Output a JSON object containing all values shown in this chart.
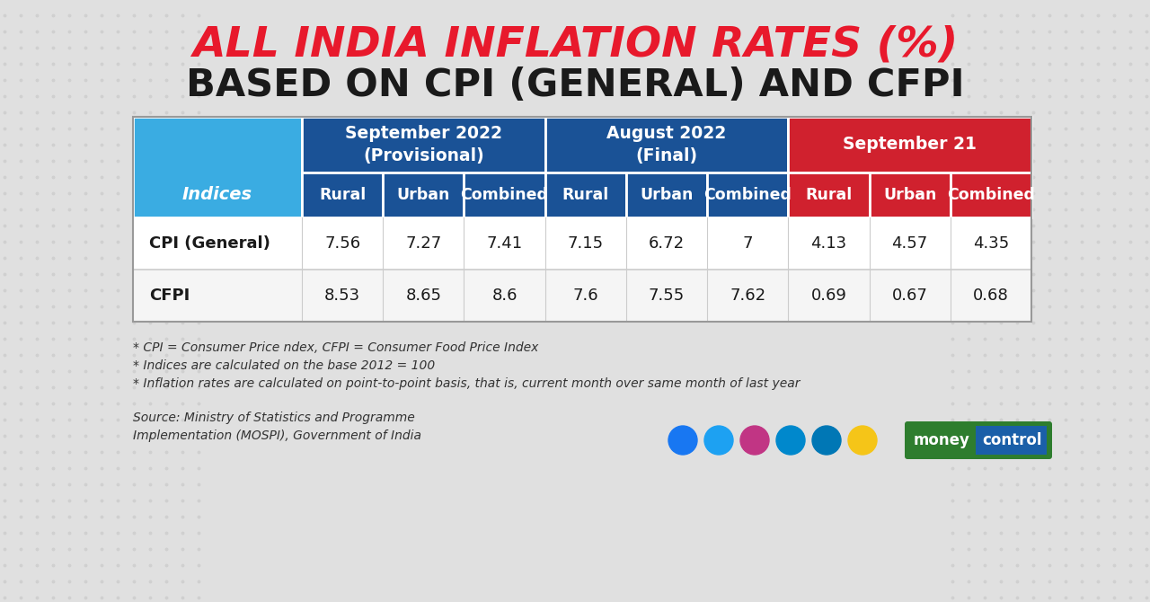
{
  "title_line1": "ALL INDIA INFLATION RATES (%)",
  "title_line2": "BASED ON CPI (GENERAL) AND CFPI",
  "title_line1_color": "#e8192c",
  "title_line2_color": "#1a1a1a",
  "bg_color": "#e0e0e0",
  "dot_color": "#cccccc",
  "col_groups": [
    {
      "label": "September 2022\n(Provisional)",
      "color": "#1a5296",
      "span": 3
    },
    {
      "label": "August 2022\n(Final)",
      "color": "#1a5296",
      "span": 3
    },
    {
      "label": "September 21",
      "color": "#d0212e",
      "span": 3
    }
  ],
  "sub_headers": [
    "Rural",
    "Urban",
    "Combined",
    "Rural",
    "Urban",
    "Combined",
    "Rural",
    "Urban",
    "Combined"
  ],
  "sub_header_bg1": "#1a5296",
  "sub_header_bg2": "#d0212e",
  "index_header_label": "Indices",
  "index_header_bg": "#3aace2",
  "rows": [
    {
      "label": "CPI (General)",
      "values": [
        "7.56",
        "7.27",
        "7.41",
        "7.15",
        "6.72",
        "7",
        "4.13",
        "4.57",
        "4.35"
      ]
    },
    {
      "label": "CFPI",
      "values": [
        "8.53",
        "8.65",
        "8.6",
        "7.6",
        "7.55",
        "7.62",
        "0.69",
        "0.67",
        "0.68"
      ]
    }
  ],
  "footnotes": [
    "* CPI = Consumer Price ndex, CFPI = Consumer Food Price Index",
    "* Indices are calculated on the base 2012 = 100",
    "* Inflation rates are calculated on point-to-point basis, that is, current month over same month of last year"
  ],
  "source_text": "Source: Ministry of Statistics and Programme\nImplementation (MOSPI), Government of India",
  "row_bg_even": "#ffffff",
  "row_bg_odd": "#f5f5f5",
  "row_line_color": "#cccccc",
  "icon_colors": [
    "#1877f2",
    "#1da1f2",
    "#c13584",
    "#0088cc",
    "#0077b5",
    "#f5c518"
  ],
  "mc_green": "#2e7d2e",
  "mc_blue": "#1a5fa8"
}
